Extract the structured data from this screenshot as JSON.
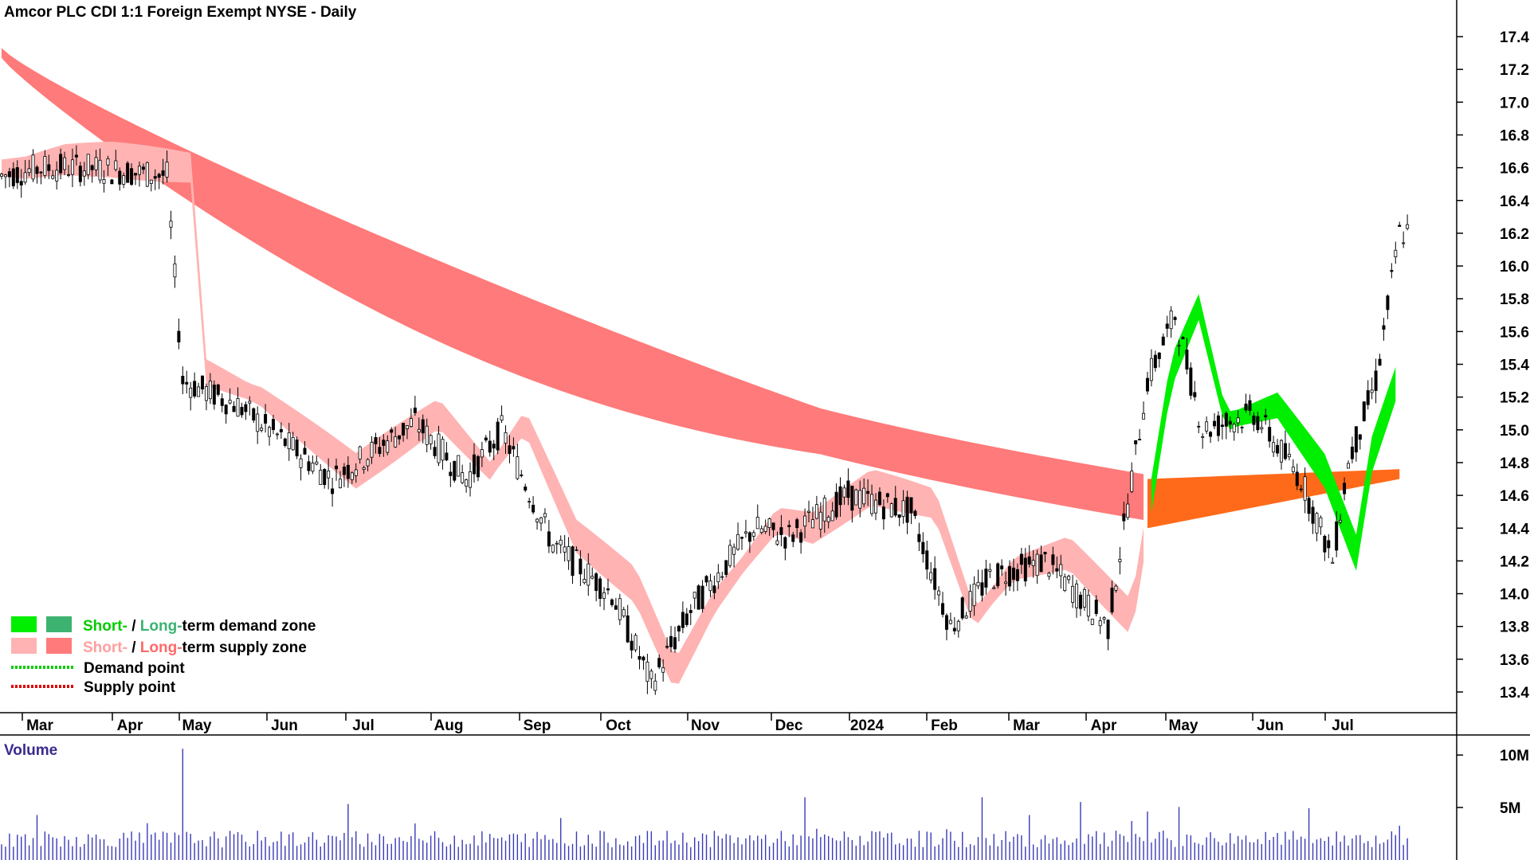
{
  "title": "Amcor PLC CDI 1:1 Foreign Exempt NYSE - Daily",
  "volume_title": "Volume",
  "colors": {
    "background": "#ffffff",
    "short_demand": "#00ee00",
    "long_demand": "#3cb371",
    "short_supply": "#ffb3b3",
    "long_supply": "#ff7a7a",
    "crossover": "#ff6a1a",
    "volume_bar": "#3a3ab8",
    "demand_point": "#00cc00",
    "supply_point": "#dd0000"
  },
  "legend": {
    "zone_demand": {
      "short": "Short-",
      "sep": " / ",
      "long": "Long-",
      "rest": "term demand zone"
    },
    "zone_supply": {
      "short": "Short-",
      "sep": " / ",
      "long": "Long-",
      "rest": "term supply zone"
    },
    "demand_point": "Demand point",
    "supply_point": "Supply point"
  },
  "chart_data": {
    "type": "candlestick",
    "title": "Amcor PLC CDI 1:1 Foreign Exempt NYSE - Daily",
    "price_axis": {
      "position": "right",
      "ylim": [
        13.25,
        17.6
      ],
      "ticks": [
        "13.4",
        "13.6",
        "13.8",
        "14.0",
        "14.2",
        "14.4",
        "14.6",
        "14.8",
        "15.0",
        "15.2",
        "15.4",
        "15.6",
        "15.8",
        "16.0",
        "16.2",
        "16.4",
        "16.6",
        "16.8",
        "17.0",
        "17.2",
        "17.4"
      ]
    },
    "time_axis": {
      "labels": [
        "Mar",
        "Apr",
        "May",
        "Jun",
        "Jul",
        "Aug",
        "Sep",
        "Oct",
        "Nov",
        "Dec",
        "2024",
        "Feb",
        "Mar",
        "Apr",
        "May",
        "Jun",
        "Jul"
      ],
      "label_index": [
        0,
        22,
        42,
        64,
        84,
        105,
        127,
        148,
        170,
        191,
        210,
        231,
        251,
        270,
        291,
        313,
        332
      ]
    },
    "volume_axis": {
      "ticks": [
        "5M",
        "10M"
      ],
      "ylim": [
        0,
        11000000
      ]
    },
    "legend_position": "bottom-left",
    "key_prices": [
      {
        "date": "Mar",
        "close": 16.5
      },
      {
        "date": "May",
        "close": 15.2
      },
      {
        "date": "Aug",
        "close": 15.1
      },
      {
        "date": "Oct",
        "close": 13.4
      },
      {
        "date": "Dec",
        "close": 14.6
      },
      {
        "date": "Feb",
        "close": 14.5
      },
      {
        "date": "Apr",
        "close": 13.8
      },
      {
        "date": "May",
        "close": 15.7
      },
      {
        "date": "Jul",
        "close": 14.2
      },
      {
        "date": "Jul",
        "close": 16.2
      }
    ],
    "series": [
      {
        "name": "Short-term supply zone",
        "color": "#ffb3b3"
      },
      {
        "name": "Long-term supply zone",
        "color": "#ff7a7a"
      },
      {
        "name": "Short-term demand zone",
        "color": "#00ee00"
      },
      {
        "name": "Long-term demand zone",
        "color": "#3cb371"
      }
    ]
  }
}
